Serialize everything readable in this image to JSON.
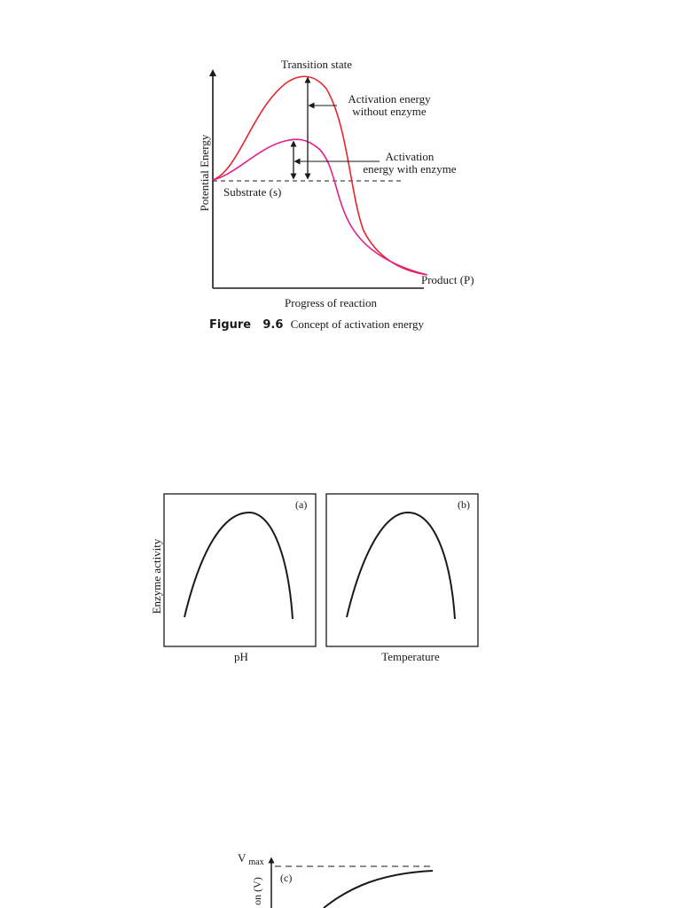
{
  "figure_96": {
    "caption_label": "Figure",
    "caption_number": "9.6",
    "caption_text": "Concept of activation energy",
    "transition_state": "Transition state",
    "activation_without_line1": "Activation energy",
    "activation_without_line2": "without enzyme",
    "activation_with_line1": "Activation",
    "activation_with_line2": "energy with enzyme",
    "substrate": "Substrate (s)",
    "product": "Product (P)",
    "ylabel": "Potential Energy",
    "xlabel": "Progress of reaction"
  },
  "figure_ab": {
    "ylabel": "Enzyme activity",
    "panel_a_tag": "(a)",
    "panel_b_tag": "(b)",
    "panel_a_xlabel": "pH",
    "panel_b_xlabel": "Temperature"
  },
  "figure_c": {
    "vmax_main": "V",
    "vmax_sub": "max",
    "panel_tag": "(c)",
    "ylabel_fragment": "on (V)"
  },
  "colors": {
    "without_enzyme_curve": "#e8232a",
    "with_enzyme_curve": "#e0208c",
    "ink": "#1a1a1a"
  }
}
